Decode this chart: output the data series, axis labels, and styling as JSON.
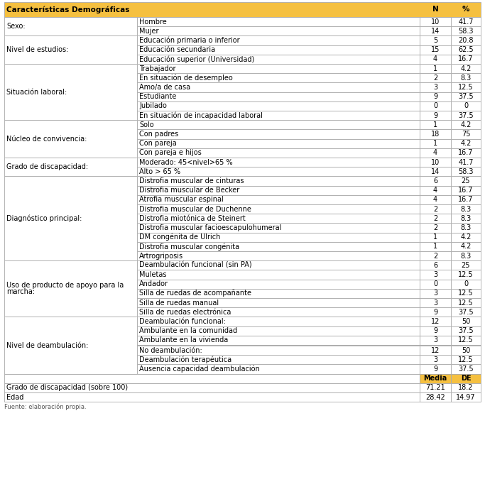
{
  "title": "Características Demográficas",
  "col_n": "N",
  "col_pct": "%",
  "col_media": "Media",
  "col_de": "DE",
  "header_bg": "#F5C842",
  "border_color": "#AAAAAA",
  "sections": [
    {
      "label": "Sexo:",
      "items": [
        {
          "desc": "Hombre",
          "n": "10",
          "pct": "41.7"
        },
        {
          "desc": "Mujer",
          "n": "14",
          "pct": "58.3"
        }
      ]
    },
    {
      "label": "Nivel de estudios:",
      "items": [
        {
          "desc": "Educación primaria o inferior",
          "n": "5",
          "pct": "20.8"
        },
        {
          "desc": "Educación secundaria",
          "n": "15",
          "pct": "62.5"
        },
        {
          "desc": "Educación superior (Universidad)",
          "n": "4",
          "pct": "16.7"
        }
      ]
    },
    {
      "label": "Situación laboral:",
      "items": [
        {
          "desc": "Trabajador",
          "n": "1",
          "pct": "4.2"
        },
        {
          "desc": "En situación de desempleo",
          "n": "2",
          "pct": "8.3"
        },
        {
          "desc": "Amo/a de casa",
          "n": "3",
          "pct": "12.5"
        },
        {
          "desc": "Estudiante",
          "n": "9",
          "pct": "37.5"
        },
        {
          "desc": "Jubilado",
          "n": "0",
          "pct": "0"
        },
        {
          "desc": "En situación de incapacidad laboral",
          "n": "9",
          "pct": "37.5"
        }
      ]
    },
    {
      "label": "Núcleo de convivencia:",
      "items": [
        {
          "desc": "Solo",
          "n": "1",
          "pct": "4.2"
        },
        {
          "desc": "Con padres",
          "n": "18",
          "pct": "75"
        },
        {
          "desc": "Con pareja",
          "n": "1",
          "pct": "4.2"
        },
        {
          "desc": "Con pareja e hijos",
          "n": "4",
          "pct": "16.7"
        }
      ]
    },
    {
      "label": "Grado de discapacidad:",
      "items": [
        {
          "desc": "Moderado: 45<nivel>65 %",
          "n": "10",
          "pct": "41.7"
        },
        {
          "desc": "Alto > 65 %",
          "n": "14",
          "pct": "58.3"
        }
      ]
    },
    {
      "label": "Diagnóstico principal:",
      "items": [
        {
          "desc": "Distrofia muscular de cinturas",
          "n": "6",
          "pct": "25"
        },
        {
          "desc": "Distrofia muscular de Becker",
          "n": "4",
          "pct": "16.7"
        },
        {
          "desc": "Atrofia muscular espinal",
          "n": "4",
          "pct": "16.7"
        },
        {
          "desc": "Distrofia muscular de Duchenne",
          "n": "2",
          "pct": "8.3"
        },
        {
          "desc": "Distrofia miotónica de Steinert",
          "n": "2",
          "pct": "8.3"
        },
        {
          "desc": "Distrofia muscular facioescapulohumeral",
          "n": "2",
          "pct": "8.3"
        },
        {
          "desc": "DM congénita de Ulrich",
          "n": "1",
          "pct": "4.2"
        },
        {
          "desc": "Distrofia muscular congénita",
          "n": "1",
          "pct": "4.2"
        },
        {
          "desc": "Artrogriposis",
          "n": "2",
          "pct": "8.3"
        }
      ]
    },
    {
      "label": "Uso de producto de apoyo para la\nmarcha:",
      "items": [
        {
          "desc": "Deambulación funcional (sin PA)",
          "n": "6",
          "pct": "25"
        },
        {
          "desc": "Muletas",
          "n": "3",
          "pct": "12.5"
        },
        {
          "desc": "Andador",
          "n": "0",
          "pct": "0"
        },
        {
          "desc": "Silla de ruedas de acompañante",
          "n": "3",
          "pct": "12.5"
        },
        {
          "desc": "Silla de ruedas manual",
          "n": "3",
          "pct": "12.5"
        },
        {
          "desc": "Silla de ruedas electrónica",
          "n": "9",
          "pct": "37.5"
        }
      ]
    },
    {
      "label": "Nivel de deambulación:",
      "sub_blocks": [
        {
          "items": [
            {
              "desc": "Deambulación funcional:",
              "n": "12",
              "pct": "50"
            },
            {
              "desc": "Ambulante en la comunidad",
              "n": "9",
              "pct": "37.5"
            },
            {
              "desc": "Ambulante en la vivienda",
              "n": "3",
              "pct": "12.5"
            }
          ]
        },
        {
          "items": [
            {
              "desc": "No deambulación:",
              "n": "12",
              "pct": "50"
            },
            {
              "desc": "Deambulación terapéutica",
              "n": "3",
              "pct": "12.5"
            },
            {
              "desc": "Ausencia capacidad deambulación",
              "n": "9",
              "pct": "37.5"
            }
          ]
        }
      ]
    }
  ],
  "footer_rows": [
    {
      "label": "Grado de discapacidad (sobre 100)",
      "media": "71.21",
      "de": "18.2"
    },
    {
      "label": "Edad",
      "media": "28.42",
      "de": "14.97"
    }
  ],
  "footnote": "Fuente: elaboración propia."
}
